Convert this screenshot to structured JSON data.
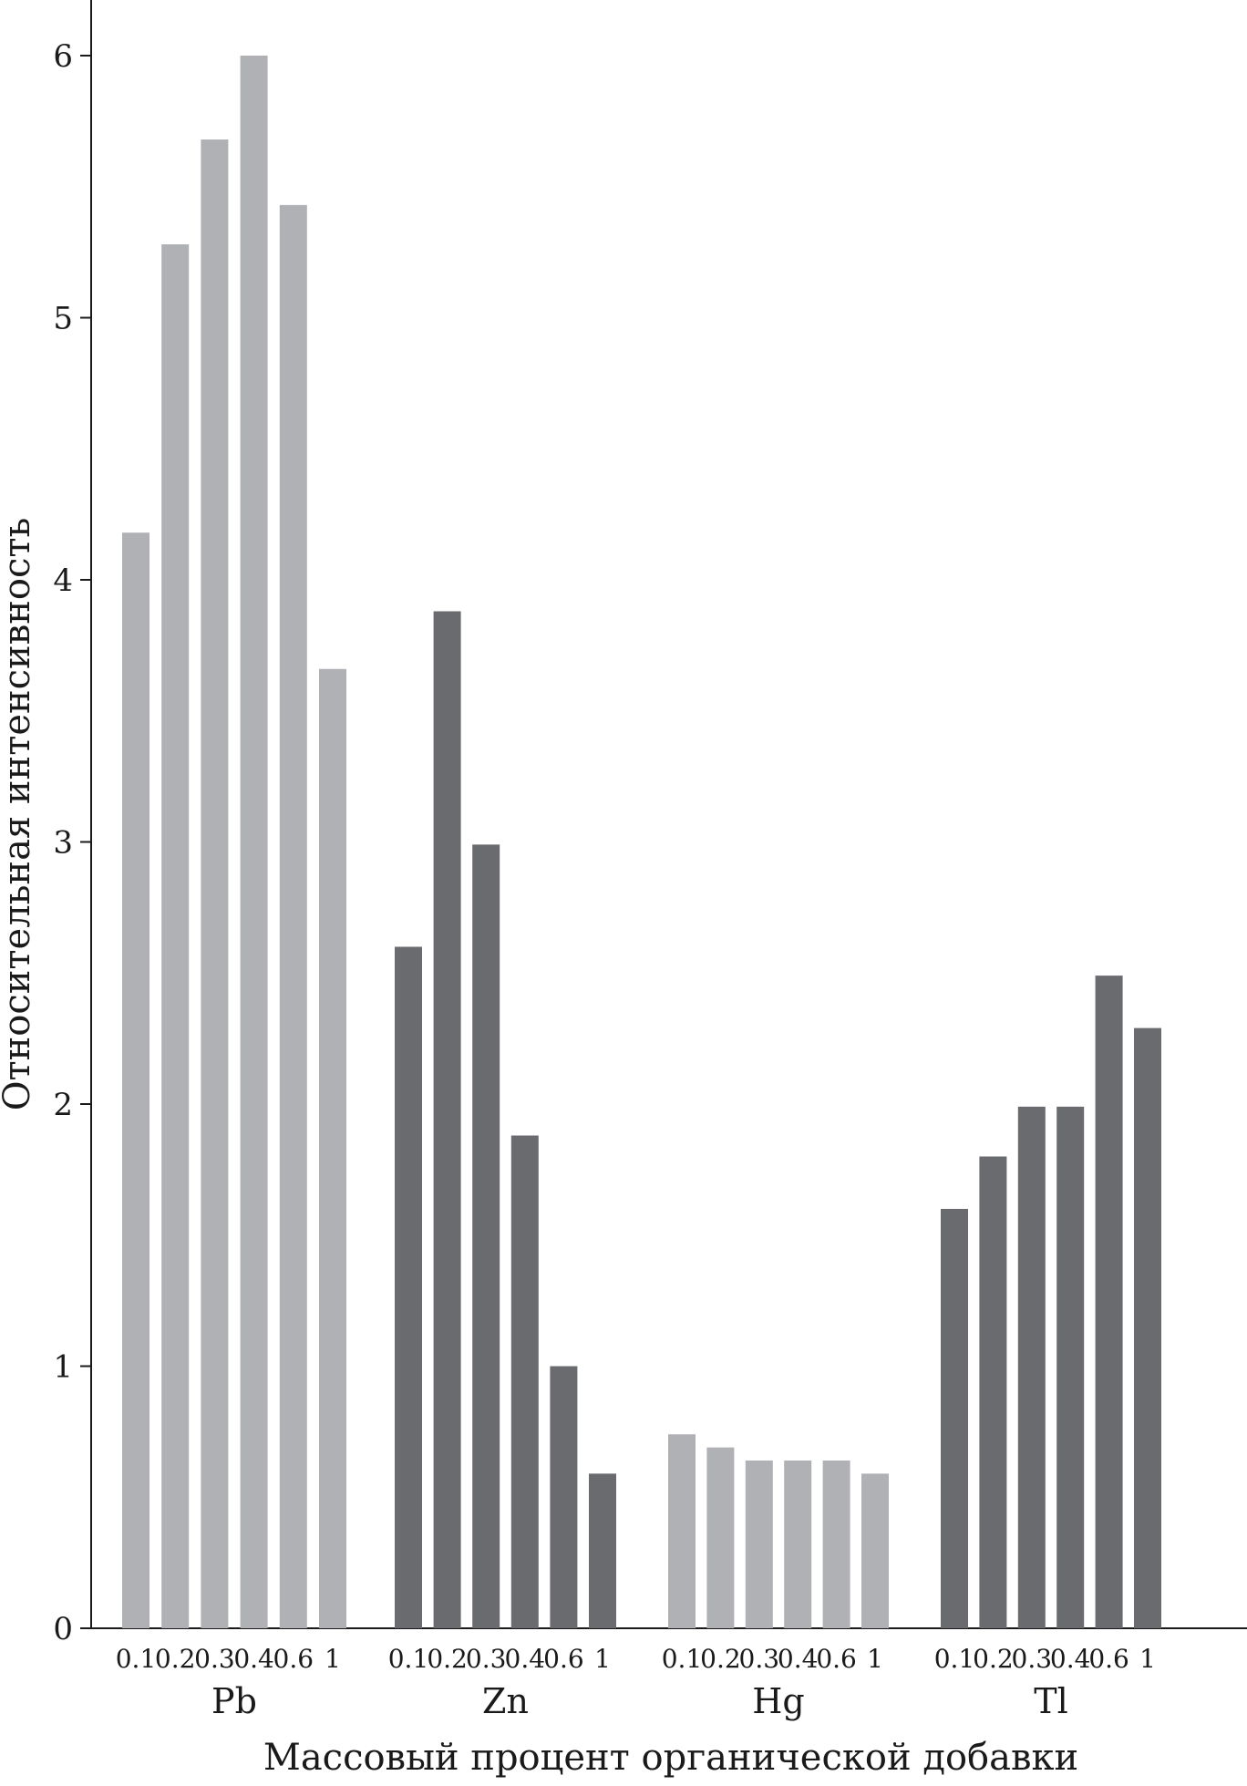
{
  "chart_data": {
    "type": "bar",
    "ylabel": "Относительная интенсивность",
    "xlabel": "Массовый процент органической добавки",
    "ylim": [
      0,
      6.2
    ],
    "yticks": [
      "0",
      "1",
      "2",
      "3",
      "4",
      "5",
      "6"
    ],
    "categories": [
      "0.1",
      "0.2",
      "0.3",
      "0.4",
      "0.6",
      "1"
    ],
    "colors": {
      "light": "#b0b1b4",
      "dark": "#6a6b6e"
    },
    "groups": [
      {
        "name": "Pb",
        "color": "light",
        "values": [
          4.18,
          5.28,
          5.68,
          6.0,
          5.43,
          3.66
        ]
      },
      {
        "name": "Zn",
        "color": "dark",
        "values": [
          2.6,
          3.88,
          2.99,
          1.88,
          1.0,
          0.59
        ]
      },
      {
        "name": "Hg",
        "color": "light",
        "values": [
          0.74,
          0.69,
          0.64,
          0.64,
          0.64,
          0.59
        ]
      },
      {
        "name": "Tl",
        "color": "dark",
        "values": [
          1.6,
          1.8,
          1.99,
          1.99,
          2.49,
          2.29
        ]
      }
    ]
  }
}
